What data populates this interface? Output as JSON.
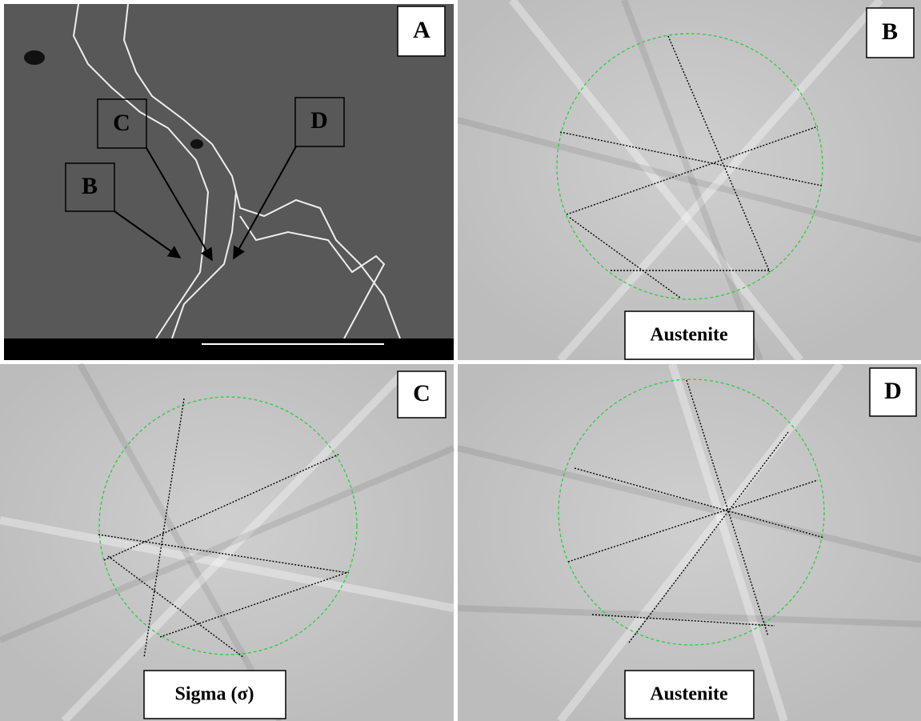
{
  "panels": [
    {
      "label": "A",
      "boxes": [
        "B",
        "C",
        "D"
      ]
    },
    {
      "label": "B",
      "caption": "Austenite"
    },
    {
      "label": "C",
      "caption": "Sigma (σ)"
    },
    {
      "label": "D",
      "caption": "Austenite"
    }
  ]
}
